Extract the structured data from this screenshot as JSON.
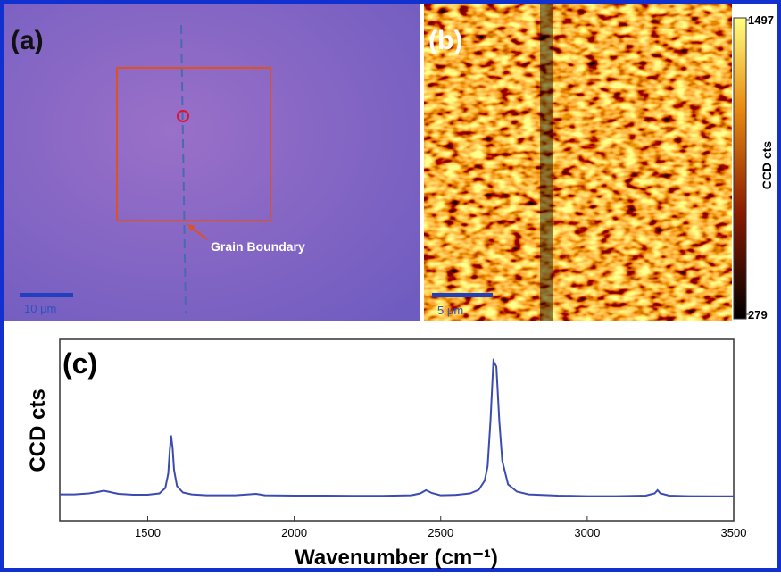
{
  "panels": {
    "a": {
      "label": "(a)",
      "annotation": "Grain Boundary",
      "scale_bar": "10 μm"
    },
    "b": {
      "label": "(b)",
      "scale_bar": "5 μm",
      "colorbar": {
        "label": "CCD cts",
        "lim": [
          279,
          1497
        ],
        "ticks": [
          279,
          1497
        ]
      }
    }
  },
  "chart_data": {
    "type": "line",
    "title": "(c)",
    "xlabel": "Wavenumber (cm⁻¹)",
    "ylabel": "CCD cts",
    "color": "#3b4bb0",
    "x": [
      1200,
      1250,
      1300,
      1330,
      1350,
      1370,
      1400,
      1450,
      1500,
      1540,
      1560,
      1570,
      1575,
      1580,
      1585,
      1590,
      1600,
      1620,
      1650,
      1700,
      1800,
      1870,
      1900,
      2000,
      2100,
      2200,
      2300,
      2400,
      2430,
      2450,
      2470,
      2500,
      2550,
      2600,
      2630,
      2650,
      2660,
      2670,
      2680,
      2690,
      2700,
      2710,
      2730,
      2760,
      2800,
      2900,
      3000,
      3100,
      3200,
      3230,
      3240,
      3250,
      3280,
      3350,
      3450,
      3500
    ],
    "values": [
      14.5,
      14.5,
      15,
      15.8,
      16.5,
      15.8,
      14.8,
      14.3,
      14.3,
      15,
      18,
      26,
      38,
      47,
      40,
      28,
      19,
      15.5,
      14.5,
      14,
      14,
      14.8,
      14,
      13.8,
      13.8,
      13.7,
      13.7,
      14,
      15,
      16.8,
      15.2,
      14,
      14.2,
      15,
      17,
      22,
      30,
      55,
      88,
      85,
      55,
      33,
      20,
      16,
      14.5,
      13.8,
      13.5,
      13.5,
      13.8,
      15,
      16.8,
      15,
      13.8,
      13.5,
      13.4,
      13.4
    ],
    "xlim": [
      1200,
      3500
    ],
    "xticks": [
      1500,
      2000,
      2500,
      3000,
      3500
    ],
    "ylim": [
      0,
      100
    ]
  }
}
